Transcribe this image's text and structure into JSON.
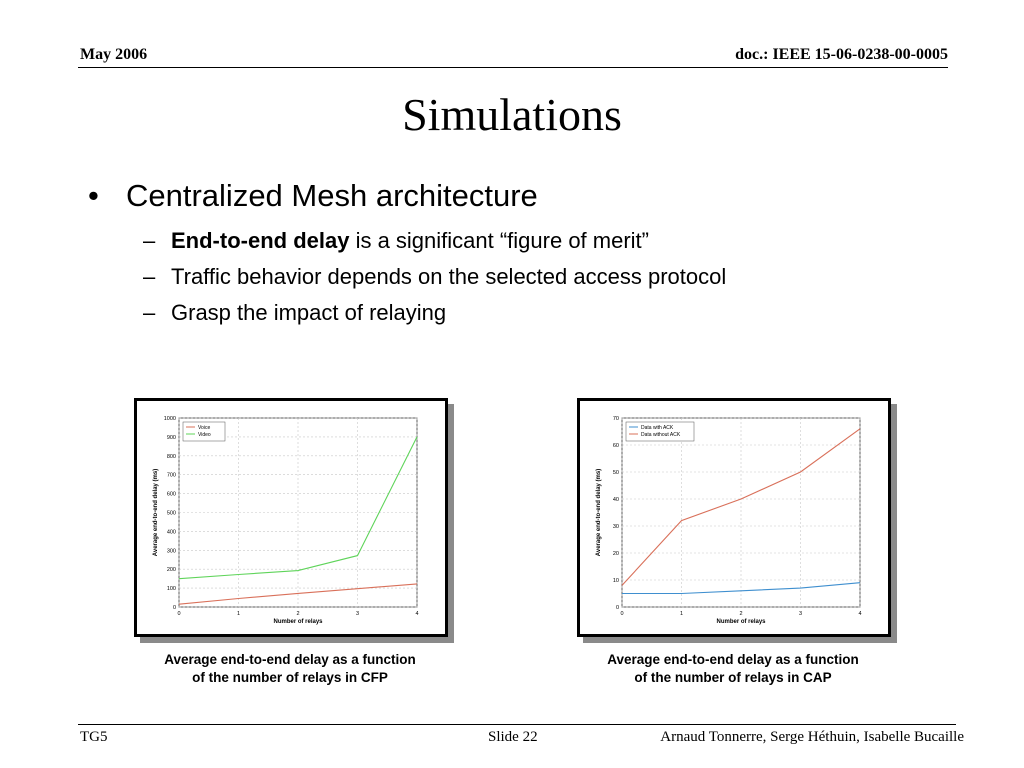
{
  "header": {
    "left": "May 2006",
    "right": "doc.: IEEE 15-06-0238-00-0005"
  },
  "title": "Simulations",
  "bullet": {
    "text": "Centralized Mesh architecture"
  },
  "subs": [
    {
      "bold": "End-to-end delay",
      "rest": " is a significant “figure of merit”"
    },
    {
      "text": "Traffic behavior depends on the selected access protocol"
    },
    {
      "text": "Grasp the impact of relaying"
    }
  ],
  "captions": [
    {
      "line1": "Average end-to-end delay as a function",
      "line2": "of the number of relays in CFP"
    },
    {
      "line1": "Average end-to-end delay as a function",
      "line2": "of the number of relays in CAP"
    }
  ],
  "footer": {
    "left": "TG5",
    "mid": "Slide 22",
    "right": "Arnaud Tonnerre, Serge Héthuin, Isabelle Bucaille"
  },
  "chart_data": [
    {
      "type": "line",
      "xlabel": "Number of relays",
      "ylabel": "Average end-to-end delay (ms)",
      "xlim": [
        0,
        4
      ],
      "ylim": [
        0,
        1000
      ],
      "xticks": [
        0,
        1,
        2,
        3,
        4
      ],
      "yticks": [
        0,
        100,
        200,
        300,
        400,
        500,
        600,
        700,
        800,
        900,
        1000
      ],
      "grid": true,
      "legend_position": "top-left",
      "series": [
        {
          "name": "Voice",
          "color": "#d9705a",
          "x": [
            0,
            1,
            2,
            3,
            4
          ],
          "values": [
            15,
            45,
            72,
            97,
            122
          ]
        },
        {
          "name": "Video",
          "color": "#5fd45a",
          "x": [
            0,
            1,
            2,
            3,
            4
          ],
          "values": [
            150,
            172,
            193,
            272,
            900
          ]
        }
      ]
    },
    {
      "type": "line",
      "xlabel": "Number of relays",
      "ylabel": "Average end-to-end delay (ms)",
      "xlim": [
        0,
        4
      ],
      "ylim": [
        0,
        70
      ],
      "xticks": [
        0,
        1,
        2,
        3,
        4
      ],
      "yticks": [
        0,
        10,
        20,
        30,
        40,
        50,
        60,
        70
      ],
      "grid": true,
      "legend_position": "top-left",
      "series": [
        {
          "name": "Data with ACK",
          "color": "#3f8fcf",
          "x": [
            0,
            1,
            2,
            3,
            4
          ],
          "values": [
            5,
            5,
            6,
            7,
            9
          ]
        },
        {
          "name": "Data without ACK",
          "color": "#d9705a",
          "x": [
            0,
            1,
            2,
            3,
            4
          ],
          "values": [
            8,
            32,
            40,
            50,
            66
          ]
        }
      ]
    }
  ]
}
